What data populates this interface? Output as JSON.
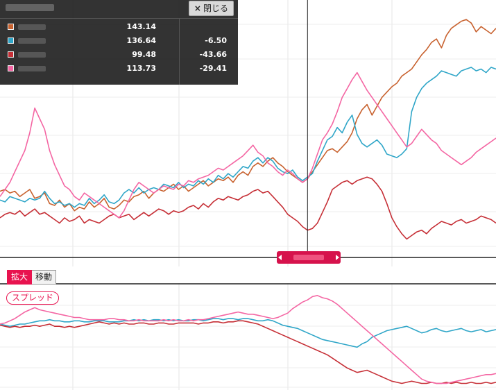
{
  "tooltip": {
    "close_label": "閉じる",
    "close_icon": "×",
    "rows": [
      {
        "color": "#c8622f",
        "value": "143.14",
        "change": ""
      },
      {
        "color": "#2fa6c8",
        "value": "136.64",
        "change": "-6.50"
      },
      {
        "color": "#c62f36",
        "value": "99.48",
        "change": "-43.66"
      },
      {
        "color": "#f466a3",
        "value": "113.73",
        "change": "-29.41"
      }
    ]
  },
  "controls": {
    "zoom_label": "拡大",
    "move_label": "移動",
    "spread_label": "スプレッド"
  },
  "chart_data": [
    {
      "type": "line",
      "panel": "main",
      "x_index_range": [
        0,
        100
      ],
      "grid": true,
      "cursor_index": 62,
      "series": [
        {
          "color": "#c8622f",
          "values": [
            117,
            118,
            116,
            117,
            114,
            116,
            118,
            113,
            114,
            116,
            110,
            109,
            112,
            108,
            110,
            106,
            108,
            107,
            111,
            108,
            110,
            113,
            108,
            107,
            109,
            112,
            111,
            114,
            115,
            117,
            113,
            116,
            118,
            117,
            119,
            121,
            118,
            120,
            117,
            119,
            121,
            123,
            120,
            122,
            124,
            123,
            125,
            122,
            126,
            128,
            126,
            131,
            133,
            131,
            134,
            136,
            133,
            131,
            128,
            126,
            124,
            122,
            124,
            128,
            132,
            136,
            140,
            141,
            139,
            142,
            145,
            150,
            158,
            163,
            166,
            160,
            165,
            170,
            173,
            176,
            178,
            182,
            184,
            186,
            190,
            194,
            197,
            201,
            203,
            198,
            205,
            209,
            211,
            213,
            214,
            212,
            207,
            210,
            208,
            206,
            209
          ]
        },
        {
          "color": "#2fa6c8",
          "values": [
            112,
            111,
            114,
            113,
            112,
            111,
            113,
            112,
            113,
            117,
            113,
            110,
            111,
            109,
            110,
            108,
            110,
            109,
            113,
            110,
            112,
            115,
            111,
            110,
            112,
            116,
            118,
            116,
            119,
            116,
            118,
            119,
            118,
            121,
            120,
            119,
            122,
            119,
            121,
            120,
            123,
            121,
            124,
            122,
            126,
            124,
            127,
            125,
            128,
            131,
            130,
            134,
            136,
            133,
            136,
            134,
            130,
            128,
            127,
            129,
            125,
            123,
            125,
            127,
            134,
            140,
            146,
            148,
            153,
            150,
            156,
            160,
            149,
            144,
            142,
            144,
            146,
            143,
            138,
            137,
            136,
            138,
            141,
            162,
            170,
            175,
            178,
            180,
            182,
            185,
            184,
            183,
            182,
            185,
            186,
            187,
            185,
            186,
            184,
            187,
            186
          ]
        },
        {
          "color": "#c62f36",
          "values": [
            102,
            104,
            105,
            104,
            106,
            103,
            105,
            107,
            104,
            105,
            103,
            101,
            99,
            102,
            100,
            101,
            103,
            99,
            101,
            100,
            99,
            101,
            103,
            104,
            102,
            103,
            104,
            101,
            103,
            105,
            103,
            105,
            107,
            106,
            104,
            106,
            105,
            106,
            108,
            109,
            107,
            110,
            108,
            111,
            113,
            112,
            114,
            113,
            112,
            114,
            115,
            117,
            118,
            116,
            117,
            114,
            111,
            108,
            104,
            102,
            100,
            97,
            95,
            96,
            99,
            105,
            111,
            118,
            120,
            122,
            123,
            121,
            123,
            124,
            125,
            124,
            121,
            117,
            110,
            102,
            97,
            93,
            90,
            92,
            94,
            95,
            93,
            96,
            98,
            100,
            99,
            98,
            100,
            101,
            99,
            100,
            101,
            103,
            102,
            101,
            99
          ]
        },
        {
          "color": "#f466a3",
          "values": [
            114,
            118,
            122,
            128,
            134,
            140,
            150,
            164,
            158,
            152,
            140,
            132,
            126,
            120,
            118,
            114,
            112,
            116,
            114,
            112,
            110,
            108,
            106,
            104,
            102,
            106,
            112,
            118,
            122,
            120,
            118,
            116,
            118,
            120,
            119,
            118,
            121,
            120,
            123,
            122,
            124,
            125,
            126,
            128,
            130,
            129,
            131,
            133,
            135,
            137,
            140,
            143,
            139,
            137,
            133,
            131,
            128,
            126,
            129,
            127,
            124,
            122,
            124,
            130,
            138,
            146,
            150,
            155,
            162,
            170,
            175,
            180,
            184,
            179,
            174,
            170,
            166,
            162,
            158,
            154,
            150,
            146,
            142,
            144,
            148,
            152,
            149,
            146,
            144,
            140,
            138,
            136,
            134,
            132,
            134,
            136,
            139,
            141,
            143,
            145,
            147
          ]
        }
      ]
    },
    {
      "type": "line",
      "panel": "spread",
      "x_index_range": [
        0,
        100
      ],
      "grid": true,
      "series": [
        {
          "color": "#2fa6c8",
          "values": [
            -2,
            -3,
            -4,
            -3,
            -2,
            -2,
            -1,
            0,
            1,
            1,
            2,
            1,
            1,
            0,
            0,
            1,
            1,
            0,
            0,
            1,
            1,
            1,
            0,
            0,
            0,
            1,
            1,
            2,
            1,
            2,
            1,
            2,
            2,
            1,
            2,
            1,
            2,
            1,
            1,
            2,
            2,
            1,
            2,
            3,
            3,
            2,
            3,
            3,
            2,
            3,
            3,
            2,
            1,
            1,
            2,
            1,
            -1,
            -3,
            -4,
            -5,
            -6,
            -8,
            -10,
            -12,
            -14,
            -16,
            -17,
            -18,
            -19,
            -20,
            -21,
            -22,
            -23,
            -20,
            -18,
            -14,
            -12,
            -10,
            -8,
            -7,
            -6,
            -5,
            -4,
            -6,
            -8,
            -10,
            -9,
            -7,
            -6,
            -8,
            -9,
            -8,
            -7,
            -6,
            -8,
            -9,
            -8,
            -7,
            -9,
            -8,
            -7
          ]
        },
        {
          "color": "#c62f36",
          "values": [
            -3,
            -4,
            -5,
            -4,
            -5,
            -4,
            -4,
            -3,
            -4,
            -3,
            -2,
            -4,
            -4,
            -5,
            -4,
            -5,
            -4,
            -3,
            -2,
            -1,
            0,
            -1,
            -2,
            -1,
            -2,
            -1,
            -2,
            -2,
            -1,
            -1,
            -2,
            -2,
            -1,
            -1,
            -2,
            -2,
            -1,
            -1,
            -1,
            -1,
            -2,
            -1,
            -1,
            0,
            0,
            -1,
            0,
            0,
            1,
            1,
            0,
            -1,
            -2,
            -4,
            -6,
            -8,
            -10,
            -12,
            -14,
            -16,
            -18,
            -20,
            -22,
            -24,
            -26,
            -28,
            -30,
            -33,
            -36,
            -39,
            -42,
            -44,
            -46,
            -45,
            -44,
            -46,
            -48,
            -50,
            -52,
            -54,
            -55,
            -56,
            -55,
            -54,
            -55,
            -56,
            -56,
            -55,
            -56,
            -56,
            -55,
            -56,
            -55,
            -56,
            -56,
            -55,
            -56,
            -56,
            -55,
            -56,
            -55
          ]
        },
        {
          "color": "#f466a3",
          "values": [
            -2,
            -1,
            1,
            3,
            6,
            9,
            11,
            13,
            11,
            10,
            9,
            8,
            7,
            6,
            5,
            4,
            4,
            3,
            2,
            2,
            2,
            2,
            3,
            3,
            2,
            2,
            1,
            1,
            2,
            1,
            1,
            1,
            1,
            2,
            1,
            2,
            1,
            1,
            2,
            1,
            2,
            2,
            3,
            4,
            5,
            6,
            7,
            8,
            9,
            8,
            7,
            7,
            6,
            5,
            4,
            3,
            4,
            6,
            8,
            12,
            15,
            18,
            20,
            23,
            24,
            22,
            21,
            19,
            16,
            12,
            8,
            4,
            0,
            -4,
            -8,
            -12,
            -16,
            -20,
            -24,
            -28,
            -32,
            -36,
            -40,
            -44,
            -48,
            -52,
            -54,
            -55,
            -56,
            -56,
            -56,
            -55,
            -54,
            -53,
            -52,
            -51,
            -50,
            -49,
            -48,
            -48,
            -47
          ]
        }
      ]
    }
  ]
}
